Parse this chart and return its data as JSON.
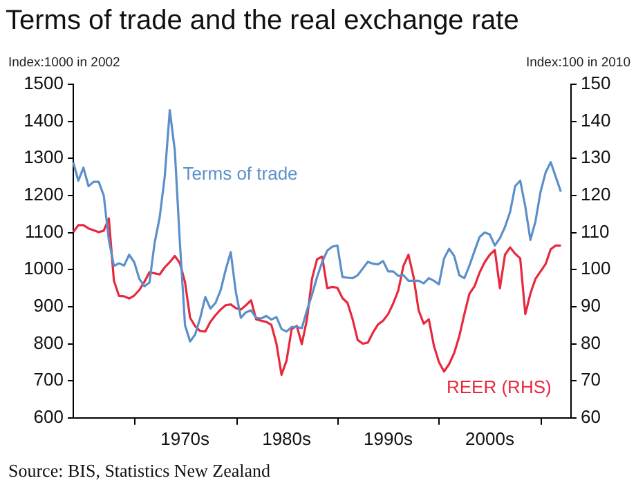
{
  "chart_data": {
    "type": "line",
    "title": "Terms of trade and the real exchange rate",
    "ylabel": "Index:1000 in 2002",
    "y2label": "Index:100 in 2010",
    "categories": [
      null,
      null,
      null,
      null,
      null,
      null,
      null,
      null,
      null,
      null,
      null,
      null,
      null,
      null,
      null,
      null,
      null,
      null,
      null,
      null,
      null,
      null,
      "1970s",
      null,
      null,
      null,
      null,
      null,
      null,
      null,
      null,
      null,
      null,
      null,
      null,
      null,
      null,
      null,
      null,
      null,
      null,
      null,
      "1980s",
      null,
      null,
      null,
      null,
      null,
      null,
      null,
      null,
      null,
      null,
      null,
      null,
      null,
      null,
      null,
      null,
      null,
      null,
      null,
      "1990s",
      null,
      null,
      null,
      null,
      null,
      null,
      null,
      null,
      null,
      null,
      null,
      null,
      null,
      null,
      null,
      null,
      null,
      null,
      null,
      "2000s",
      null,
      null,
      null,
      null,
      null,
      null,
      null,
      null,
      null,
      null,
      null,
      null,
      null,
      null,
      null,
      null
    ],
    "ylim": [
      600,
      1500
    ],
    "yticks": [
      600,
      700,
      800,
      900,
      1000,
      1100,
      1200,
      1300,
      1400,
      1500
    ],
    "y2lim": [
      60,
      150
    ],
    "y2ticks": [
      60,
      70,
      80,
      90,
      100,
      110,
      120,
      130,
      140,
      150
    ],
    "grid": false,
    "legend": false,
    "marker": "none",
    "line_style": "solid",
    "annotations": [
      "Source: BIS, Statistics New Zealand"
    ],
    "series": [
      {
        "name": "Terms of trade",
        "color": "#5b8fc9",
        "values": [
          1289,
          1240,
          1275,
          1225,
          1237,
          1237,
          1200,
          1080,
          1010,
          1017,
          1011,
          1040,
          1020,
          975,
          955,
          965,
          1071,
          1140,
          1250,
          1430,
          1320,
          1070,
          850,
          806,
          825,
          870,
          926,
          895,
          910,
          944,
          999,
          1047,
          940,
          870,
          885,
          890,
          870,
          868,
          875,
          865,
          872,
          840,
          833,
          845,
          845,
          842,
          890,
          932,
          980,
          1020,
          1051,
          1062,
          1065,
          980,
          978,
          977,
          985,
          1003,
          1021,
          1016,
          1014,
          1023,
          995,
          995,
          983,
          985,
          970,
          970,
          970,
          963,
          977,
          970,
          960,
          1030,
          1056,
          1037,
          985,
          977,
          1011,
          1050,
          1088,
          1100,
          1095,
          1065,
          1085,
          1115,
          1155,
          1225,
          1240,
          1170,
          1080,
          1130,
          1210,
          1262,
          1290,
          1250,
          1210,
          null,
          null
        ]
      },
      {
        "name": "REER (RHS)",
        "color": "#e8283c",
        "axis": "y2",
        "values": [
          110.1,
          112.0,
          112.0,
          111.1,
          110.6,
          110.1,
          110.5,
          113.8,
          97,
          92.9,
          92.8,
          92.2,
          93.0,
          94.5,
          96.7,
          99.3,
          99.0,
          98.7,
          100.6,
          102,
          103.7,
          101.7,
          96.6,
          87,
          84.7,
          83.4,
          83.3,
          85.9,
          87.7,
          89.2,
          90.4,
          90.6,
          89.6,
          89.2,
          90.4,
          91.7,
          86.6,
          86.2,
          85.9,
          85.1,
          80,
          71.6,
          75.5,
          84,
          84.8,
          79.9,
          86.5,
          97.5,
          102.8,
          103.5,
          95.0,
          95.3,
          95.1,
          92.3,
          91.0,
          86.6,
          81,
          80,
          80.3,
          83,
          85.2,
          86.2,
          88,
          90.9,
          94.4,
          101,
          104,
          98,
          89,
          85.4,
          86.6,
          79.5,
          75,
          72.5,
          74.5,
          77.5,
          82,
          88,
          93.5,
          95.5,
          99.2,
          102,
          104,
          105.3,
          95,
          104,
          106,
          104.3,
          103,
          88,
          93.5,
          97.5,
          99.5,
          101.5,
          105.5,
          106.5,
          106.5,
          null,
          null
        ]
      }
    ]
  }
}
